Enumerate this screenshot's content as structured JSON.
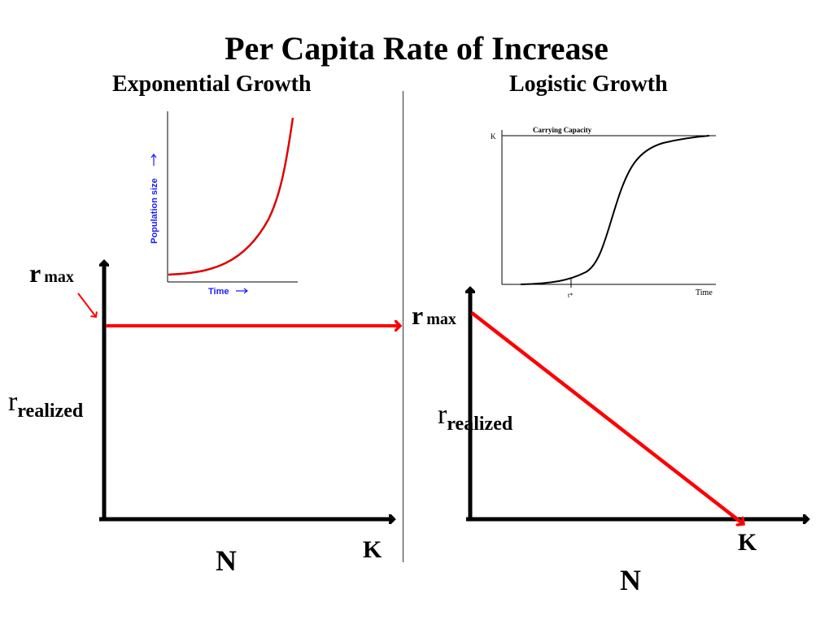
{
  "title": "Per Capita Rate of Increase",
  "left_panel": {
    "heading": "Exponential Growth",
    "r_max_main": "r",
    "r_max_sub": "max",
    "r_realized_main": "r",
    "r_realized_sub": "realized",
    "x_label": "N",
    "k_label": "K",
    "inset": {
      "x_axis_label": "Time",
      "y_axis_label": "Population size",
      "curve_color": "#e00000",
      "axis_label_color": "#1a1aff"
    }
  },
  "right_panel": {
    "heading": "Logistic Growth",
    "r_max_main": "r",
    "r_max_sub": "max",
    "r_realized_main": "r",
    "r_realized_sub": "realized",
    "x_label": "N",
    "k_label": "K",
    "inset": {
      "capacity_label": "Carrying Capacity",
      "k_tick": "K",
      "x_axis_label": "Time",
      "t_star_label": "t*"
    }
  },
  "colors": {
    "arrow_red": "#ff0000",
    "axis_black": "#000000"
  }
}
